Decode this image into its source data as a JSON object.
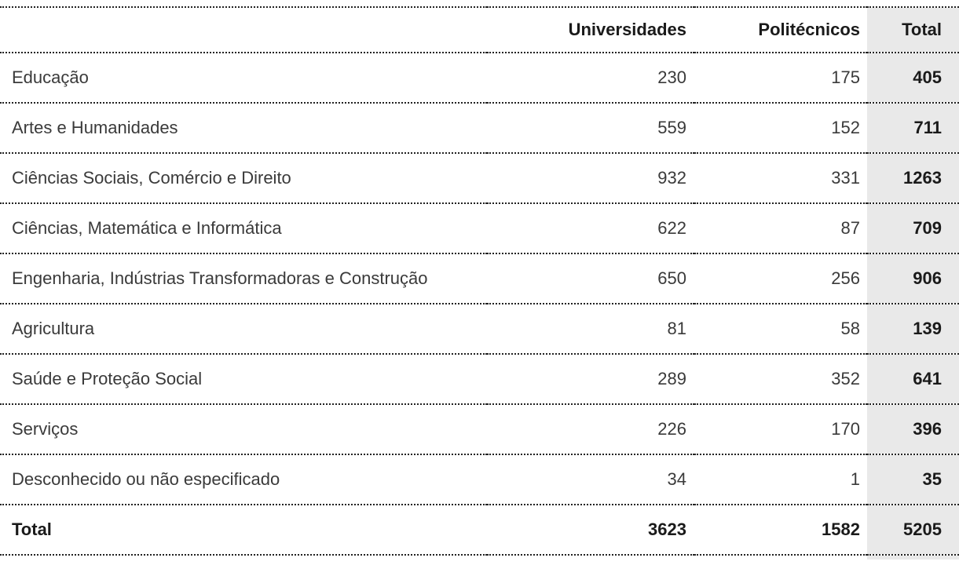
{
  "chart_data": {
    "type": "table",
    "columns": [
      "Universidades",
      "Politécnicos",
      "Total"
    ],
    "rows": [
      {
        "label": "Educação",
        "values": [
          230,
          175,
          405
        ]
      },
      {
        "label": "Artes e Humanidades",
        "values": [
          559,
          152,
          711
        ]
      },
      {
        "label": "Ciências Sociais, Comércio e Direito",
        "values": [
          932,
          331,
          1263
        ]
      },
      {
        "label": "Ciências, Matemática e Informática",
        "values": [
          622,
          87,
          709
        ]
      },
      {
        "label": "Engenharia, Indústrias Transformadoras e Construção",
        "values": [
          650,
          256,
          906
        ]
      },
      {
        "label": "Agricultura",
        "values": [
          81,
          58,
          139
        ]
      },
      {
        "label": "Saúde e Proteção Social",
        "values": [
          289,
          352,
          641
        ]
      },
      {
        "label": "Serviços",
        "values": [
          226,
          170,
          396
        ]
      },
      {
        "label": "Desconhecido ou não especificado",
        "values": [
          34,
          1,
          35
        ]
      }
    ],
    "total_row": {
      "label": "Total",
      "values": [
        3623,
        1582,
        5205
      ]
    },
    "layout": {
      "highlighted_column": "Total",
      "row_divider_style": "dotted"
    }
  },
  "colors": {
    "background": "#ffffff",
    "total_column_bg": "#e9e9e9",
    "text_regular": "#3a3a3a",
    "text_bold": "#1a1a1a",
    "divider": "#222222"
  }
}
